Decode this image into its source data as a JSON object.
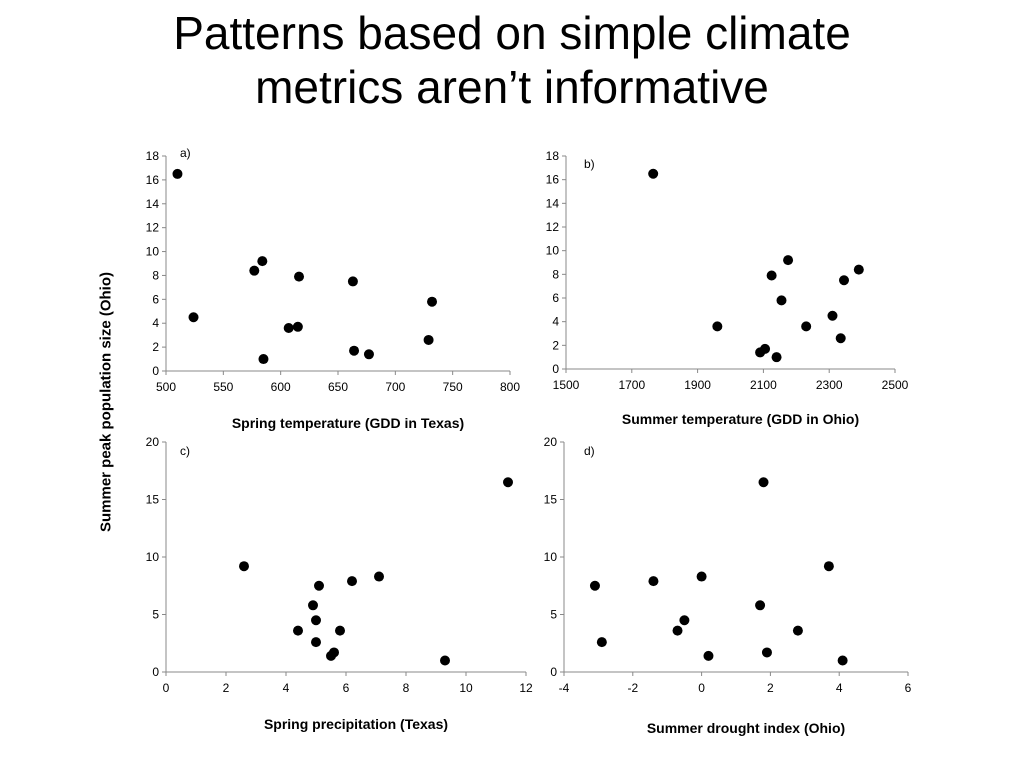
{
  "title": {
    "line1": "Patterns based on simple climate",
    "line2": "metrics aren’t informative"
  },
  "shared_ylabel": "Summer peak population size (Ohio)",
  "chart_data": [
    {
      "type": "scatter",
      "panel_label": "a)",
      "xlabel": "Spring temperature (GDD in Texas)",
      "xlim": [
        500,
        800
      ],
      "ylim": [
        0,
        18
      ],
      "xticks": [
        500,
        550,
        600,
        650,
        700,
        750,
        800
      ],
      "yticks": [
        0,
        2,
        4,
        6,
        8,
        10,
        12,
        14,
        16,
        18
      ],
      "grid": false,
      "points": [
        {
          "x": 510,
          "y": 16.5
        },
        {
          "x": 524,
          "y": 4.5
        },
        {
          "x": 577,
          "y": 8.4
        },
        {
          "x": 584,
          "y": 9.2
        },
        {
          "x": 585,
          "y": 1.0
        },
        {
          "x": 607,
          "y": 3.6
        },
        {
          "x": 615,
          "y": 3.7
        },
        {
          "x": 616,
          "y": 7.9
        },
        {
          "x": 663,
          "y": 7.5
        },
        {
          "x": 664,
          "y": 1.7
        },
        {
          "x": 677,
          "y": 1.4
        },
        {
          "x": 729,
          "y": 2.6
        },
        {
          "x": 732,
          "y": 5.8
        }
      ]
    },
    {
      "type": "scatter",
      "panel_label": "b)",
      "xlabel": "Summer temperature (GDD in Ohio)",
      "xlim": [
        1500,
        2500
      ],
      "ylim": [
        0,
        18
      ],
      "xticks": [
        1500,
        1700,
        1900,
        2100,
        2300,
        2500
      ],
      "yticks": [
        0,
        2,
        4,
        6,
        8,
        10,
        12,
        14,
        16,
        18
      ],
      "grid": false,
      "points": [
        {
          "x": 1765,
          "y": 16.5
        },
        {
          "x": 1960,
          "y": 3.6
        },
        {
          "x": 2090,
          "y": 1.4
        },
        {
          "x": 2105,
          "y": 1.7
        },
        {
          "x": 2125,
          "y": 7.9
        },
        {
          "x": 2140,
          "y": 1.0
        },
        {
          "x": 2155,
          "y": 5.8
        },
        {
          "x": 2175,
          "y": 9.2
        },
        {
          "x": 2230,
          "y": 3.6
        },
        {
          "x": 2310,
          "y": 4.5
        },
        {
          "x": 2335,
          "y": 2.6
        },
        {
          "x": 2345,
          "y": 7.5
        },
        {
          "x": 2390,
          "y": 8.4
        }
      ]
    },
    {
      "type": "scatter",
      "panel_label": "c)",
      "xlabel": "Spring precipitation (Texas)",
      "xlim": [
        0,
        12
      ],
      "ylim": [
        0,
        20
      ],
      "xticks": [
        0,
        2,
        4,
        6,
        8,
        10,
        12
      ],
      "yticks": [
        0,
        5,
        10,
        15,
        20
      ],
      "grid": false,
      "points": [
        {
          "x": 2.6,
          "y": 9.2
        },
        {
          "x": 4.4,
          "y": 3.6
        },
        {
          "x": 4.9,
          "y": 5.8
        },
        {
          "x": 5.0,
          "y": 2.6
        },
        {
          "x": 5.0,
          "y": 4.5
        },
        {
          "x": 5.1,
          "y": 7.5
        },
        {
          "x": 5.5,
          "y": 1.4
        },
        {
          "x": 5.6,
          "y": 1.7
        },
        {
          "x": 5.8,
          "y": 3.6
        },
        {
          "x": 6.2,
          "y": 7.9
        },
        {
          "x": 7.1,
          "y": 8.3
        },
        {
          "x": 9.3,
          "y": 1.0
        },
        {
          "x": 11.4,
          "y": 16.5
        }
      ]
    },
    {
      "type": "scatter",
      "panel_label": "d)",
      "xlabel": "Summer drought index (Ohio)",
      "xlim": [
        -4,
        6
      ],
      "ylim": [
        0,
        20
      ],
      "xticks": [
        -4,
        -2,
        0,
        2,
        4,
        6
      ],
      "yticks": [
        0,
        5,
        10,
        15,
        20
      ],
      "grid": false,
      "points": [
        {
          "x": -3.1,
          "y": 7.5
        },
        {
          "x": -2.9,
          "y": 2.6
        },
        {
          "x": -1.4,
          "y": 7.9
        },
        {
          "x": -0.7,
          "y": 3.6
        },
        {
          "x": -0.5,
          "y": 4.5
        },
        {
          "x": 0.0,
          "y": 8.3
        },
        {
          "x": 0.2,
          "y": 1.4
        },
        {
          "x": 1.7,
          "y": 5.8
        },
        {
          "x": 1.8,
          "y": 16.5
        },
        {
          "x": 1.9,
          "y": 1.7
        },
        {
          "x": 2.8,
          "y": 3.6
        },
        {
          "x": 3.7,
          "y": 9.2
        },
        {
          "x": 4.1,
          "y": 1.0
        }
      ]
    }
  ]
}
